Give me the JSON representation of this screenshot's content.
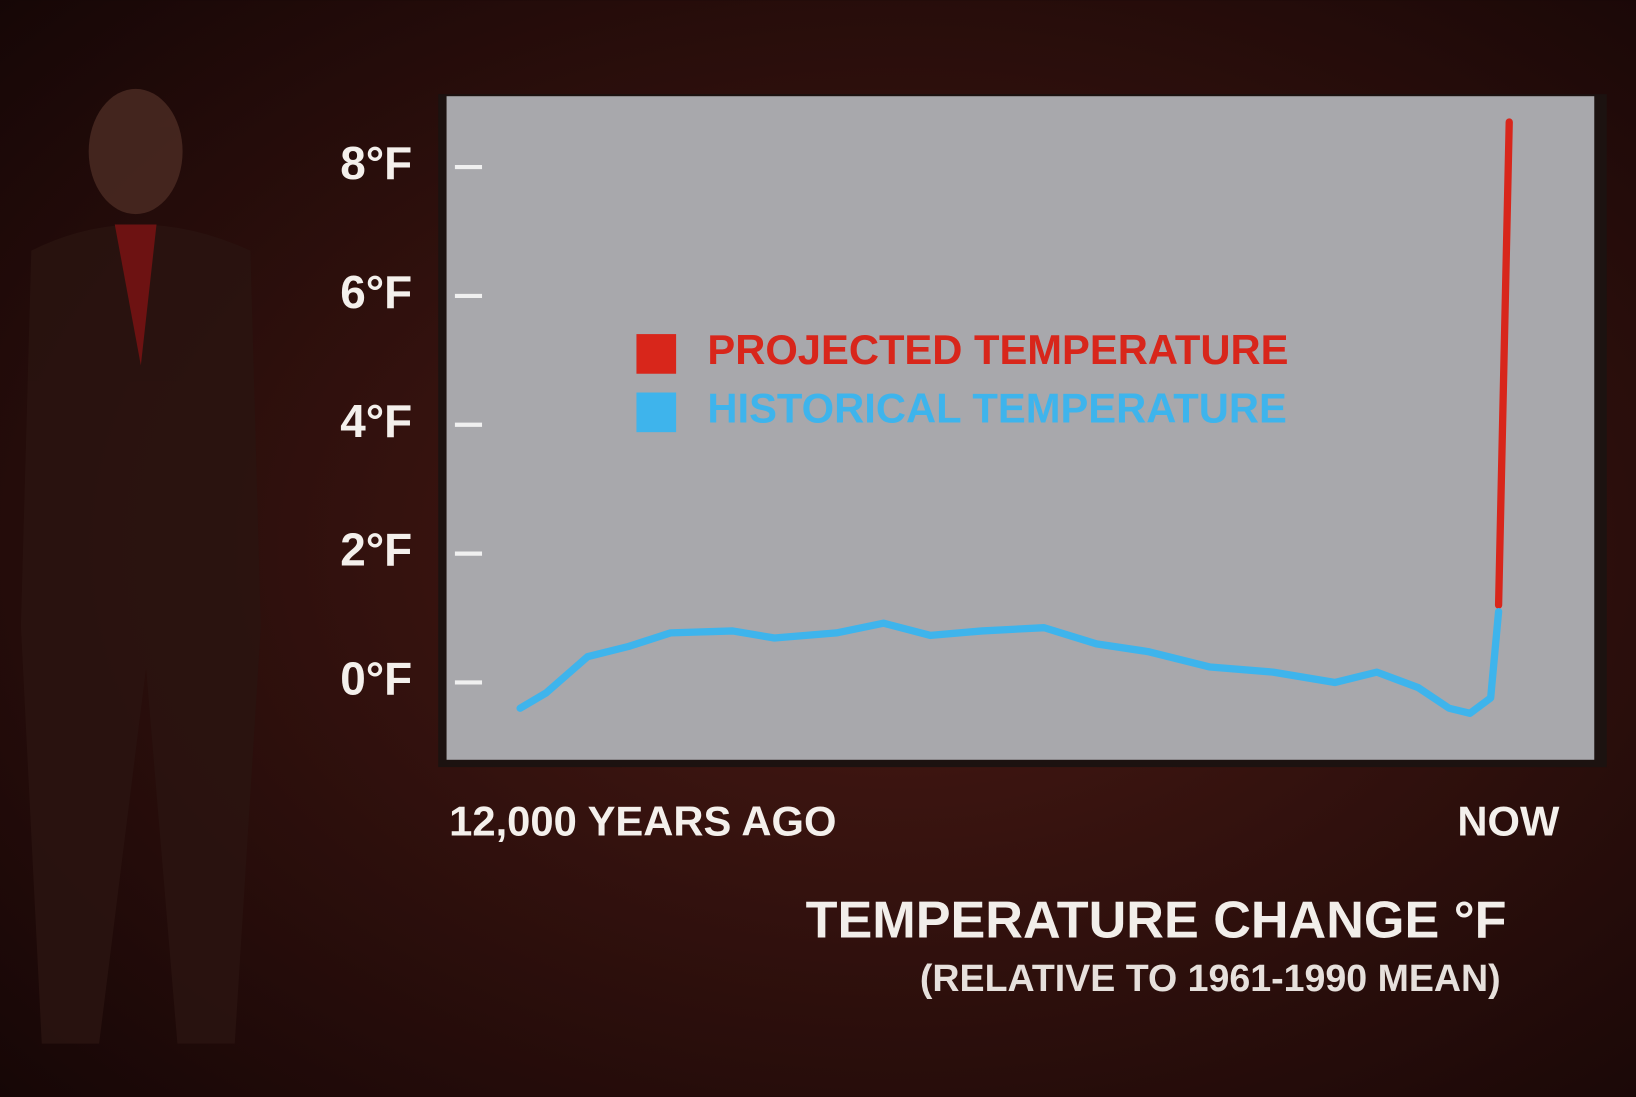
{
  "chart_data": {
    "type": "line",
    "title": "TEMPERATURE CHANGE °F",
    "subtitle": "(RELATIVE TO 1961-1990 MEAN)",
    "xlim": [
      12900,
      -1140
    ],
    "xticks": [
      {
        "value": 12000,
        "label": "12,000 YEARS AGO"
      },
      {
        "value": 0,
        "label": "NOW"
      }
    ],
    "ylim": [
      -1.2,
      9.1
    ],
    "yticks": [
      {
        "value": 0,
        "label": "0°F"
      },
      {
        "value": 2,
        "label": "2°F"
      },
      {
        "value": 4,
        "label": "4°F"
      },
      {
        "value": 6,
        "label": "6°F"
      },
      {
        "value": 8,
        "label": "8°F"
      }
    ],
    "legend": "upper-center",
    "series": [
      {
        "name": "PROJECTED TEMPERATURE",
        "color": "#d8261b",
        "x": [
          30,
          -100
        ],
        "values": [
          1.2,
          8.7
        ]
      },
      {
        "name": "HISTORICAL TEMPERATURE",
        "color": "#3eb4ec",
        "x": [
          12000,
          11680,
          11175,
          10670,
          10160,
          9400,
          8890,
          8130,
          7555,
          6980,
          6350,
          5590,
          4950,
          4320,
          3560,
          2790,
          2030,
          1520,
          1015,
          635,
          380,
          127,
          30
        ],
        "values": [
          -0.4,
          -0.16,
          0.4,
          0.56,
          0.77,
          0.8,
          0.69,
          0.77,
          0.92,
          0.73,
          0.8,
          0.85,
          0.6,
          0.48,
          0.24,
          0.16,
          0,
          0.16,
          -0.08,
          -0.4,
          -0.48,
          -0.24,
          1.1
        ]
      }
    ]
  }
}
